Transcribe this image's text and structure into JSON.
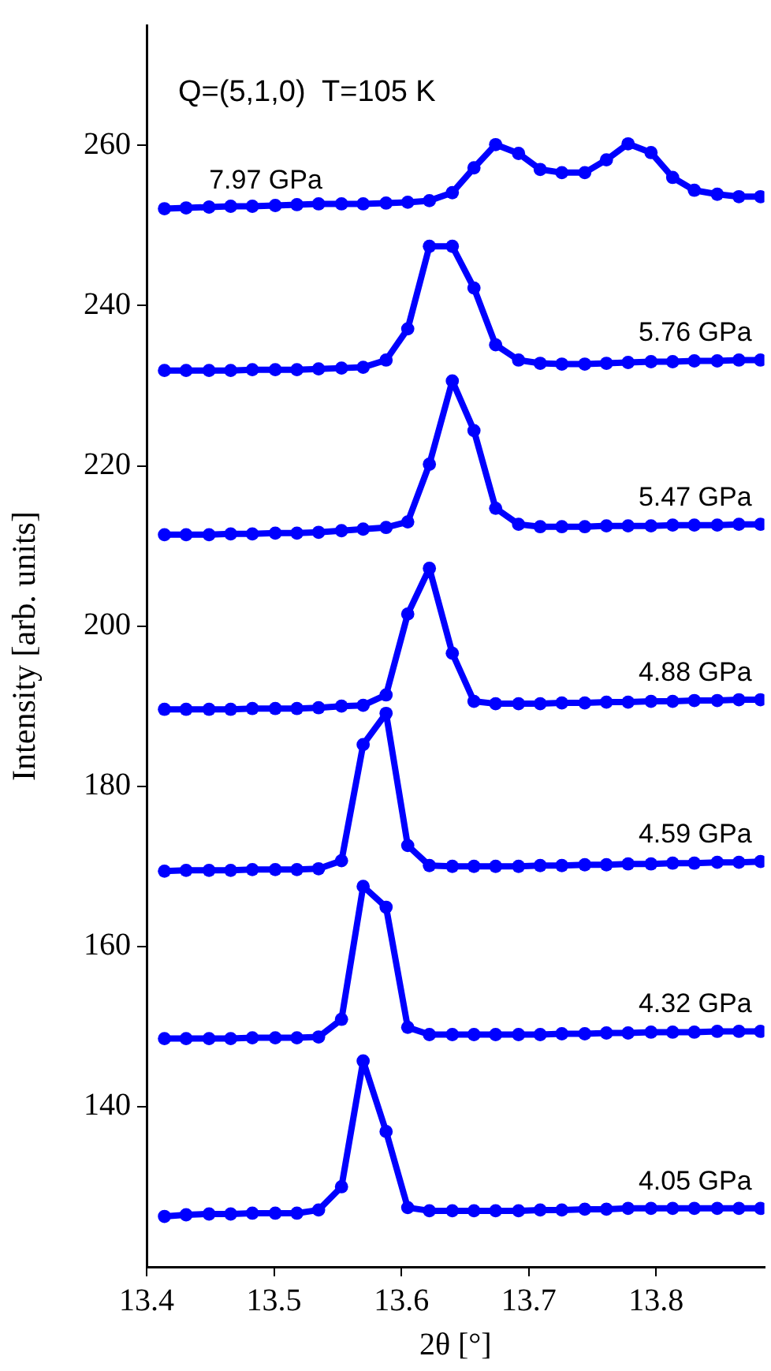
{
  "chart_data": {
    "type": "line",
    "xlabel": "2θ [°]",
    "ylabel": "Intensity [arb. units]",
    "annotations": [
      "Q=(5,1,0)  T=105 K"
    ],
    "x": [
      13.414,
      13.431,
      13.449,
      13.466,
      13.483,
      13.501,
      13.518,
      13.535,
      13.553,
      13.57,
      13.588,
      13.605,
      13.622,
      13.64,
      13.657,
      13.674,
      13.692,
      13.709,
      13.726,
      13.744,
      13.761,
      13.778,
      13.796,
      13.813,
      13.83,
      13.848,
      13.865,
      13.882
    ],
    "series": [
      {
        "name": "4.05 GPa",
        "color": "#0000ff",
        "values": [
          126.3,
          126.5,
          126.6,
          126.6,
          126.7,
          126.7,
          126.7,
          127.1,
          130.0,
          145.7,
          136.9,
          127.4,
          127.0,
          127.0,
          127.0,
          127.0,
          127.0,
          127.1,
          127.1,
          127.2,
          127.2,
          127.3,
          127.3,
          127.3,
          127.3,
          127.3,
          127.3,
          127.3
        ]
      },
      {
        "name": "4.32 GPa",
        "color": "#0000ff",
        "values": [
          148.5,
          148.5,
          148.5,
          148.5,
          148.6,
          148.6,
          148.6,
          148.7,
          150.9,
          167.5,
          164.9,
          149.9,
          149.0,
          149.0,
          149.0,
          149.0,
          149.0,
          149.0,
          149.1,
          149.1,
          149.2,
          149.2,
          149.3,
          149.3,
          149.3,
          149.4,
          149.4,
          149.4
        ]
      },
      {
        "name": "4.59 GPa",
        "color": "#0000ff",
        "values": [
          169.4,
          169.5,
          169.5,
          169.5,
          169.6,
          169.6,
          169.6,
          169.7,
          170.7,
          185.2,
          189.1,
          172.6,
          170.1,
          170.0,
          170.0,
          170.0,
          170.0,
          170.1,
          170.1,
          170.2,
          170.2,
          170.3,
          170.3,
          170.4,
          170.4,
          170.5,
          170.5,
          170.6
        ]
      },
      {
        "name": "4.88 GPa",
        "color": "#0000ff",
        "values": [
          189.6,
          189.6,
          189.6,
          189.6,
          189.7,
          189.7,
          189.7,
          189.8,
          190.0,
          190.1,
          191.4,
          201.5,
          207.2,
          196.6,
          190.6,
          190.3,
          190.3,
          190.3,
          190.4,
          190.4,
          190.5,
          190.5,
          190.6,
          190.6,
          190.7,
          190.7,
          190.8,
          190.8
        ]
      },
      {
        "name": "5.47 GPa",
        "color": "#0000ff",
        "values": [
          211.4,
          211.4,
          211.4,
          211.5,
          211.5,
          211.6,
          211.6,
          211.7,
          211.9,
          212.1,
          212.3,
          213.0,
          220.2,
          230.6,
          224.4,
          214.7,
          212.7,
          212.4,
          212.4,
          212.4,
          212.5,
          212.5,
          212.5,
          212.6,
          212.6,
          212.6,
          212.7,
          212.7
        ]
      },
      {
        "name": "5.76 GPa",
        "color": "#0000ff",
        "values": [
          231.9,
          231.9,
          231.9,
          231.9,
          232.0,
          232.0,
          232.0,
          232.1,
          232.2,
          232.3,
          233.2,
          237.1,
          247.4,
          247.4,
          242.2,
          235.1,
          233.2,
          232.8,
          232.7,
          232.7,
          232.8,
          232.9,
          233.0,
          233.0,
          233.1,
          233.1,
          233.2,
          233.2
        ]
      },
      {
        "name": "7.97 GPa",
        "color": "#0000ff",
        "values": [
          252.1,
          252.2,
          252.3,
          252.4,
          252.4,
          252.5,
          252.6,
          252.7,
          252.7,
          252.7,
          252.8,
          252.9,
          253.1,
          254.1,
          257.2,
          260.1,
          259.0,
          257.0,
          256.6,
          256.6,
          258.2,
          260.2,
          259.1,
          256.0,
          254.4,
          253.9,
          253.6,
          253.6
        ]
      }
    ],
    "xlim": [
      13.4,
      13.885
    ],
    "ylim": [
      120,
      275
    ],
    "xticks": [
      13.4,
      13.5,
      13.6,
      13.7,
      13.8
    ],
    "yticks": [
      140,
      160,
      180,
      200,
      220,
      240,
      260
    ],
    "grid": false,
    "legend": false,
    "marker": "circle",
    "line_style": "solid"
  }
}
